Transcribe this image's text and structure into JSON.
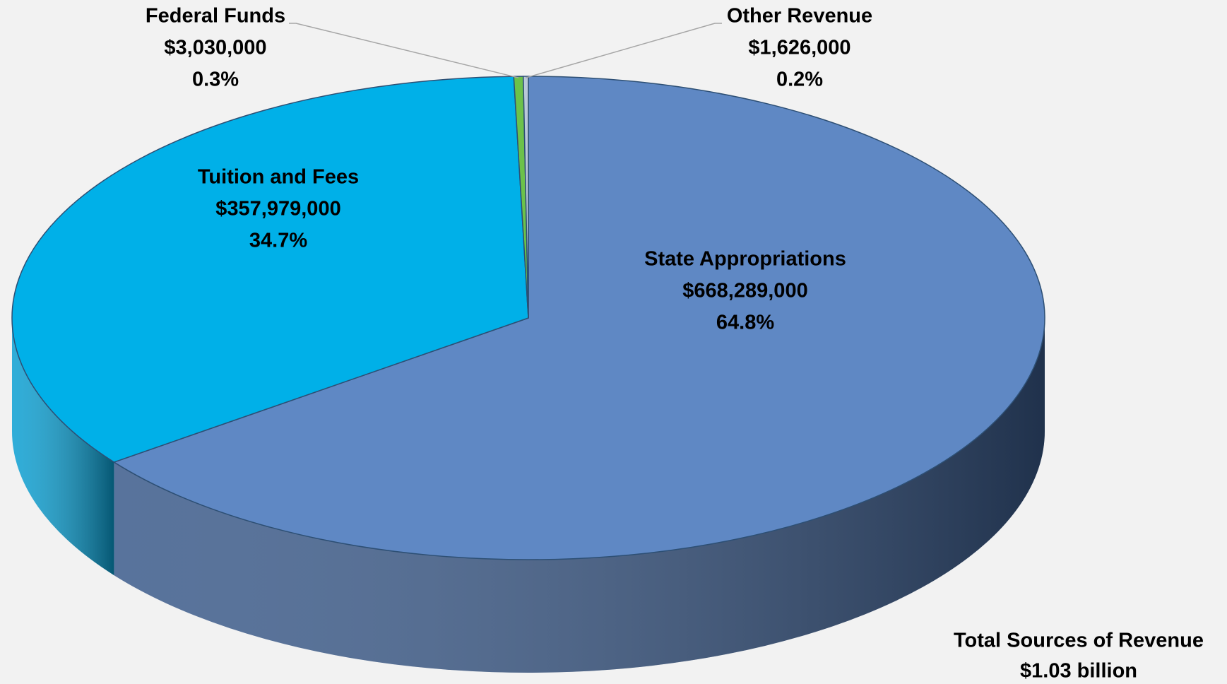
{
  "chart_data": {
    "type": "pie",
    "categories": [
      "State Appropriations",
      "Tuition and Fees",
      "Federal Funds",
      "Other Revenue"
    ],
    "values": [
      668289000,
      357979000,
      3030000,
      1626000
    ],
    "value_labels": [
      "$668,289,000",
      "$357,979,000",
      "$3,030,000",
      "$1,626,000"
    ],
    "percent_labels": [
      "64.8%",
      "34.7%",
      "0.3%",
      "0.2%"
    ],
    "colors": [
      "#5f88c4",
      "#00b0e8",
      "#6cc24a",
      "#b9c8d8"
    ],
    "side_colors": [
      "#3a5a8a",
      "#0a9fd2",
      "#4a9a30",
      "#8898a8"
    ],
    "annotations": [
      "Total Sources of Revenue",
      "$1.03 billion"
    ]
  }
}
